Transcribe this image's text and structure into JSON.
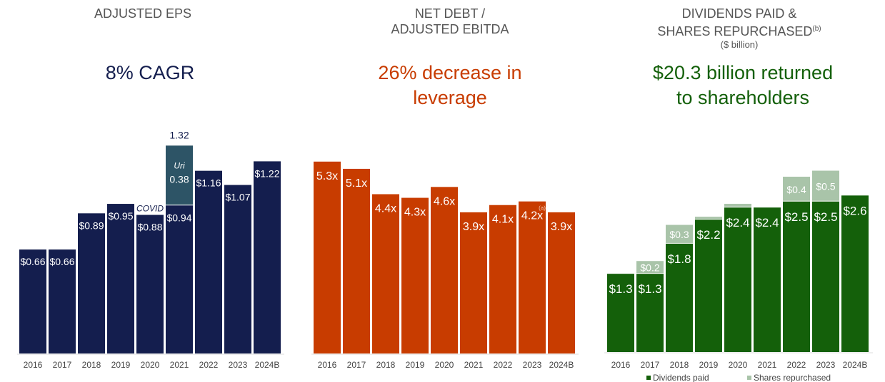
{
  "colors": {
    "navy": "#141e4e",
    "uri": "#2d5466",
    "orange": "#c83c00",
    "dark_green": "#14600a",
    "light_green": "#a9c4a9",
    "title_gray": "#555555"
  },
  "chart_data": [
    {
      "type": "bar",
      "title": "ADJUSTED EPS",
      "subtitle": "8% CAGR",
      "categories": [
        "2016",
        "2017",
        "2018",
        "2019",
        "2020",
        "2021",
        "2022",
        "2023",
        "2024B"
      ],
      "values": [
        0.66,
        0.66,
        0.89,
        0.95,
        0.88,
        0.94,
        1.16,
        1.07,
        1.22
      ],
      "labels": [
        "$0.66",
        "$0.66",
        "$0.89",
        "$0.95",
        "$0.88",
        "$0.94",
        "$1.16",
        "$1.07",
        "$1.22"
      ],
      "annotations": {
        "covid": "COVID",
        "uri_label": "Uri",
        "uri_value": 0.38,
        "uri_value_label": "0.38",
        "total_2021": "1.32"
      },
      "ylim": [
        0,
        1.4
      ]
    },
    {
      "type": "bar",
      "title_line1": "NET DEBT /",
      "title_line2": "ADJUSTED EBITDA",
      "subtitle_line1": "26% decrease in",
      "subtitle_line2": "leverage",
      "categories": [
        "2016",
        "2017",
        "2018",
        "2019",
        "2020",
        "2021",
        "2022",
        "2023",
        "2024B"
      ],
      "values": [
        5.3,
        5.1,
        4.4,
        4.3,
        4.6,
        3.9,
        4.1,
        4.2,
        3.9
      ],
      "labels": [
        "5.3x",
        "5.1x",
        "4.4x",
        "4.3x",
        "4.6x",
        "3.9x",
        "4.1x",
        "4.2x",
        "3.9x"
      ],
      "footnote_2023": "(a)",
      "ylim": [
        0,
        6
      ]
    },
    {
      "type": "bar",
      "stacked": true,
      "title_line1": "DIVIDENDS PAID &",
      "title_line2": "SHARES REPURCHASED",
      "title_footnote": "(b)",
      "unit": "($ billion)",
      "subtitle_line1": "$20.3 billion returned",
      "subtitle_line2": "to shareholders",
      "categories": [
        "2016",
        "2017",
        "2018",
        "2019",
        "2020",
        "2021",
        "2022",
        "2023",
        "2024B"
      ],
      "series": [
        {
          "name": "Dividends paid",
          "values": [
            1.3,
            1.3,
            1.8,
            2.2,
            2.4,
            2.4,
            2.5,
            2.5,
            2.6
          ],
          "labels": [
            "$1.3",
            "$1.3",
            "$1.8",
            "$2.2",
            "$2.4",
            "$2.4",
            "$2.5",
            "$2.5",
            "$2.6"
          ]
        },
        {
          "name": "Shares repurchased",
          "values": [
            0,
            0.2,
            0.3,
            0.01,
            0.05,
            0,
            0.4,
            0.5,
            0
          ],
          "labels": [
            "",
            "$0.2",
            "$0.3",
            "",
            "",
            "",
            "$0.4",
            "$0.5",
            ""
          ]
        }
      ],
      "legend": "bottom",
      "ylim": [
        0,
        3
      ]
    }
  ]
}
